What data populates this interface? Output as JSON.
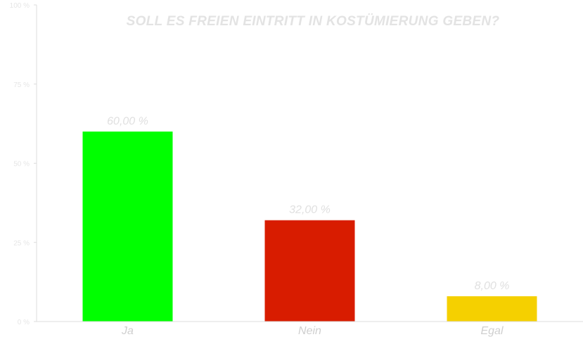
{
  "chart_data": {
    "type": "bar",
    "title": "SOLL ES FREIEN EINTRITT IN KOSTÜMIERUNG GEBEN?",
    "categories": [
      "Ja",
      "Nein",
      "Egal"
    ],
    "values": [
      60,
      32,
      8
    ],
    "value_labels": [
      "60,00 %",
      "32,00 %",
      "8,00 %"
    ],
    "colors": [
      "#00ff00",
      "#d81c00",
      "#f5d000"
    ],
    "ylim": [
      0,
      100
    ],
    "y_ticks": [
      0,
      25,
      50,
      75,
      100
    ],
    "y_tick_labels": [
      "0 %",
      "25 %",
      "50 %",
      "75 %",
      "100 %"
    ],
    "grid": false,
    "legend": "none"
  }
}
